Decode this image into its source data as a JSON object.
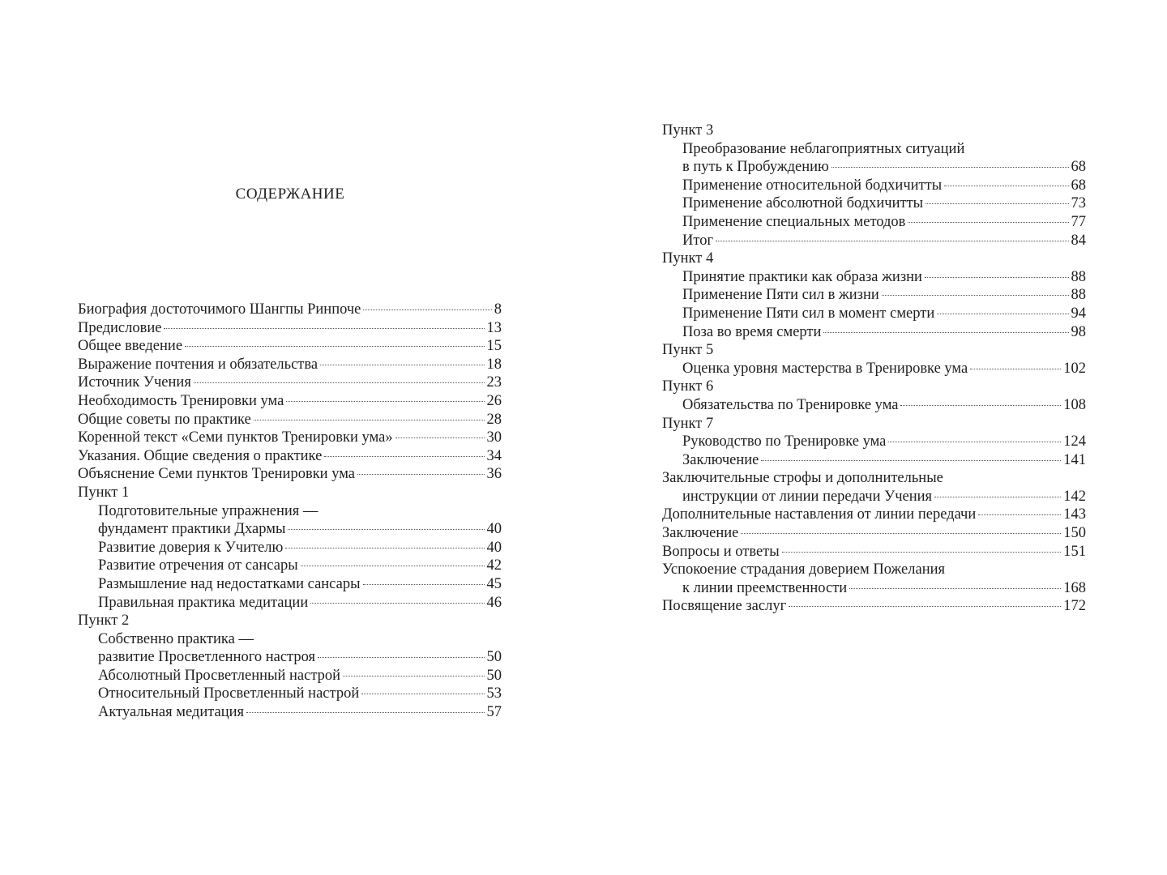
{
  "title": "СОДЕРЖАНИЕ",
  "left": [
    {
      "text": "Биография достоточимого Шангпы Ринпоче",
      "page": "8",
      "indent": false
    },
    {
      "text": "Предисловие",
      "page": "13",
      "indent": false
    },
    {
      "text": "Общее введение",
      "page": "15",
      "indent": false
    },
    {
      "text": "Выражение почтения и обязательства",
      "page": "18",
      "indent": false
    },
    {
      "text": "Источник Учения",
      "page": "23",
      "indent": false
    },
    {
      "text": "Необходимость Тренировки ума",
      "page": "26",
      "indent": false
    },
    {
      "text": "Общие советы по практике",
      "page": "28",
      "indent": false
    },
    {
      "text": "Коренной текст «Семи пунктов Тренировки ума»",
      "page": "30",
      "indent": false
    },
    {
      "text": "Указания. Общие сведения о практике",
      "page": "34",
      "indent": false
    },
    {
      "text": "Объяснение Семи пунктов Тренировки ума",
      "page": "36",
      "indent": false
    },
    {
      "text": "Пункт 1",
      "page": "",
      "indent": false
    },
    {
      "text": "Подготовительные упражнения —",
      "page": "",
      "indent": true
    },
    {
      "text": "фундамент практики Дхармы",
      "page": "40",
      "indent": true
    },
    {
      "text": "Развитие доверия к Учителю",
      "page": "40",
      "indent": true
    },
    {
      "text": "Развитие отречения от сансары",
      "page": "42",
      "indent": true
    },
    {
      "text": "Размышление над недостатками сансары",
      "page": "45",
      "indent": true
    },
    {
      "text": "Правильная практика медитации",
      "page": "46",
      "indent": true
    },
    {
      "text": "Пункт 2",
      "page": "",
      "indent": false
    },
    {
      "text": "Собственно практика —",
      "page": "",
      "indent": true
    },
    {
      "text": "развитие Просветленного настроя",
      "page": "50",
      "indent": true
    },
    {
      "text": "Абсолютный Просветленный настрой",
      "page": "50",
      "indent": true
    },
    {
      "text": "Относительный Просветленный настрой",
      "page": "53",
      "indent": true
    },
    {
      "text": "Актуальная медитация",
      "page": "57",
      "indent": true
    }
  ],
  "right": [
    {
      "text": "Пункт 3",
      "page": "",
      "indent": false
    },
    {
      "text": "Преобразование неблагоприятных ситуаций",
      "page": "",
      "indent": true
    },
    {
      "text": "в путь к Пробуждению",
      "page": "68",
      "indent": true
    },
    {
      "text": "Применение относительной бодхичитты",
      "page": "68",
      "indent": true
    },
    {
      "text": "Применение абсолютной бодхичитты",
      "page": "73",
      "indent": true
    },
    {
      "text": "Применение специальных методов",
      "page": "77",
      "indent": true
    },
    {
      "text": "Итог",
      "page": "84",
      "indent": true
    },
    {
      "text": "Пункт 4",
      "page": "",
      "indent": false
    },
    {
      "text": "Принятие практики как образа жизни",
      "page": "88",
      "indent": true
    },
    {
      "text": "Применение Пяти сил в жизни",
      "page": "88",
      "indent": true
    },
    {
      "text": "Применение Пяти сил в момент смерти",
      "page": "94",
      "indent": true
    },
    {
      "text": "Поза во время смерти",
      "page": "98",
      "indent": true
    },
    {
      "text": "Пункт 5",
      "page": "",
      "indent": false
    },
    {
      "text": "Оценка уровня мастерства в Тренировке ума",
      "page": "102",
      "indent": true
    },
    {
      "text": "Пункт 6",
      "page": "",
      "indent": false
    },
    {
      "text": "Обязательства по Тренировке ума",
      "page": "108",
      "indent": true
    },
    {
      "text": "Пункт 7",
      "page": "",
      "indent": false
    },
    {
      "text": "Руководство по Тренировке ума",
      "page": "124",
      "indent": true
    },
    {
      "text": "Заключение",
      "page": "141",
      "indent": true
    },
    {
      "text": "Заключительные строфы и дополнительные",
      "page": "",
      "indent": false
    },
    {
      "text": "инструкции от линии передачи Учения",
      "page": "142",
      "indent": true
    },
    {
      "text": "Дополнительные наставления от линии передачи",
      "page": "143",
      "indent": false
    },
    {
      "text": "Заключение",
      "page": "150",
      "indent": false
    },
    {
      "text": "Вопросы и ответы",
      "page": "151",
      "indent": false
    },
    {
      "text": "Успокоение страдания доверием Пожелания",
      "page": "",
      "indent": false
    },
    {
      "text": "к линии преемственности",
      "page": "168",
      "indent": true
    },
    {
      "text": "Посвящение заслуг",
      "page": "172",
      "indent": false
    }
  ]
}
